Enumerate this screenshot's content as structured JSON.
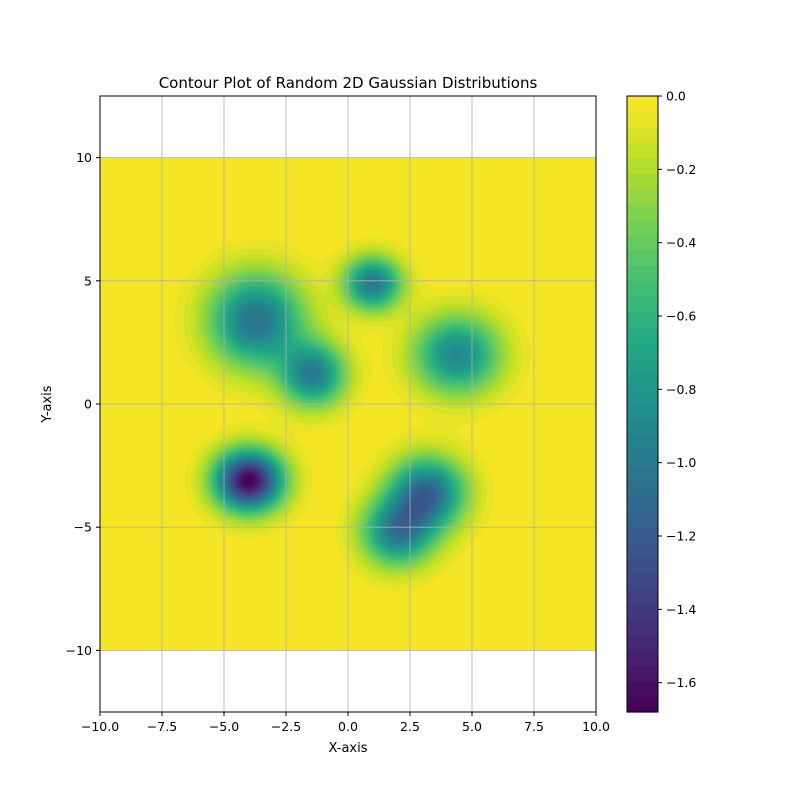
{
  "chart_data": {
    "type": "contour",
    "title": "Contour Plot of Random 2D Gaussian Distributions",
    "xlabel": "X-axis",
    "ylabel": "Y-axis",
    "xlim": [
      -10,
      10
    ],
    "ylim": [
      -12.5,
      12.5
    ],
    "data_x_range": [
      -10,
      10
    ],
    "data_y_range": [
      -10,
      10
    ],
    "x_ticks": [
      -10,
      -7.5,
      -5,
      -2.5,
      0,
      2.5,
      5,
      7.5,
      10
    ],
    "x_tick_labels": [
      "−10.0",
      "−7.5",
      "−5.0",
      "−2.5",
      "0.0",
      "2.5",
      "5.0",
      "7.5",
      "10.0"
    ],
    "y_ticks": [
      -10,
      -5,
      0,
      5,
      10
    ],
    "y_tick_labels": [
      "−10",
      "−5",
      "0",
      "5",
      "10"
    ],
    "grid": true,
    "colormap": "viridis",
    "colorbar": {
      "range": [
        -1.68,
        0
      ],
      "ticks": [
        0,
        -0.2,
        -0.4,
        -0.6,
        -0.8,
        -1.0,
        -1.2,
        -1.4,
        -1.6
      ],
      "tick_labels": [
        "0.0",
        "−0.2",
        "−0.4",
        "−0.6",
        "−0.8",
        "−1.0",
        "−1.2",
        "−1.4",
        "−1.6"
      ]
    },
    "gaussians": [
      {
        "cx": -3.7,
        "cy": 3.4,
        "sx": 1.3,
        "sy": 1.3,
        "rho": 0.0,
        "amp": -1.05
      },
      {
        "cx": -1.4,
        "cy": 1.2,
        "sx": 0.9,
        "sy": 0.9,
        "rho": 0.0,
        "amp": -0.95
      },
      {
        "cx": 1.0,
        "cy": 4.9,
        "sx": 0.8,
        "sy": 0.75,
        "rho": 0.0,
        "amp": -1.0
      },
      {
        "cx": 4.4,
        "cy": 2.0,
        "sx": 1.2,
        "sy": 1.1,
        "rho": 0.0,
        "amp": -0.9
      },
      {
        "cx": -4.0,
        "cy": -3.1,
        "sx": 0.95,
        "sy": 0.85,
        "rho": 0.0,
        "amp": -1.68
      },
      {
        "cx": 3.2,
        "cy": -3.6,
        "sx": 1.05,
        "sy": 1.0,
        "rho": 0.0,
        "amp": -1.1
      },
      {
        "cx": 2.0,
        "cy": -5.2,
        "sx": 1.0,
        "sy": 0.95,
        "rho": 0.0,
        "amp": -0.95
      }
    ]
  }
}
